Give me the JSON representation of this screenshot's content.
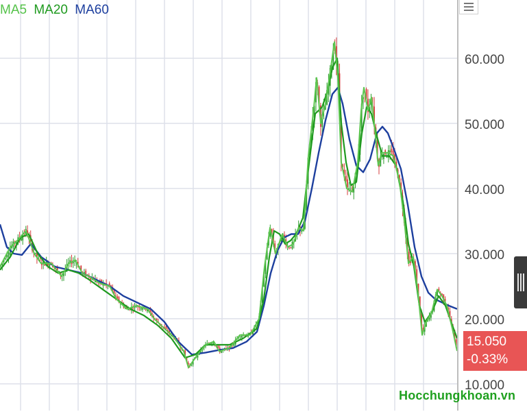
{
  "legend": [
    {
      "label": "MA5",
      "color": "#55c24a"
    },
    {
      "label": "MA20",
      "color": "#1f9a1f"
    },
    {
      "label": "MA60",
      "color": "#1d3f9e"
    }
  ],
  "price_badge": {
    "price": "15.050",
    "change": "-0.33%",
    "color": "#e85555"
  },
  "watermark": "Hocchungkhoan.vn",
  "chart_data": {
    "type": "line",
    "y_ticks": [
      "10.000",
      "20.000",
      "30.000",
      "40.000",
      "50.000",
      "60.000"
    ],
    "ylim": [
      8000,
      68000
    ],
    "grid": true,
    "colors": {
      "price": "#5cc64f",
      "ma20": "#1f9a1f",
      "ma60": "#1d3f9e",
      "up": "#2e9d2e",
      "down": "#d63b3b"
    },
    "price_series": [
      [
        0,
        28000
      ],
      [
        15,
        31000
      ],
      [
        25,
        32000
      ],
      [
        38,
        33500
      ],
      [
        50,
        30000
      ],
      [
        60,
        28500
      ],
      [
        75,
        28500
      ],
      [
        90,
        26500
      ],
      [
        100,
        28500
      ],
      [
        110,
        29000
      ],
      [
        120,
        27000
      ],
      [
        130,
        26500
      ],
      [
        145,
        25500
      ],
      [
        160,
        25000
      ],
      [
        170,
        23000
      ],
      [
        185,
        21500
      ],
      [
        200,
        22000
      ],
      [
        215,
        21500
      ],
      [
        225,
        20000
      ],
      [
        240,
        18500
      ],
      [
        255,
        17000
      ],
      [
        268,
        15000
      ],
      [
        275,
        12500
      ],
      [
        285,
        14000
      ],
      [
        300,
        16000
      ],
      [
        312,
        16500
      ],
      [
        320,
        15000
      ],
      [
        335,
        15500
      ],
      [
        350,
        17500
      ],
      [
        365,
        17500
      ],
      [
        378,
        20000
      ],
      [
        386,
        28000
      ],
      [
        394,
        34000
      ],
      [
        402,
        30000
      ],
      [
        412,
        33000
      ],
      [
        420,
        31000
      ],
      [
        428,
        31500
      ],
      [
        436,
        34000
      ],
      [
        443,
        33500
      ],
      [
        450,
        45000
      ],
      [
        458,
        52500
      ],
      [
        462,
        57000
      ],
      [
        468,
        50000
      ],
      [
        475,
        53000
      ],
      [
        482,
        58000
      ],
      [
        488,
        62500
      ],
      [
        493,
        57000
      ],
      [
        498,
        44000
      ],
      [
        506,
        40000
      ],
      [
        514,
        39500
      ],
      [
        522,
        44000
      ],
      [
        527,
        52000
      ],
      [
        531,
        55500
      ],
      [
        537,
        52000
      ],
      [
        542,
        54000
      ],
      [
        547,
        49000
      ],
      [
        552,
        43500
      ],
      [
        557,
        45500
      ],
      [
        566,
        45500
      ],
      [
        574,
        45000
      ],
      [
        583,
        41000
      ],
      [
        590,
        35000
      ],
      [
        596,
        28500
      ],
      [
        603,
        29500
      ],
      [
        610,
        24000
      ],
      [
        616,
        17500
      ],
      [
        622,
        19500
      ],
      [
        630,
        21000
      ],
      [
        638,
        24500
      ],
      [
        645,
        23500
      ],
      [
        652,
        22000
      ],
      [
        660,
        18500
      ],
      [
        667,
        15050
      ]
    ],
    "ma20_series": [
      [
        0,
        27500
      ],
      [
        15,
        29500
      ],
      [
        30,
        32500
      ],
      [
        42,
        33000
      ],
      [
        55,
        30000
      ],
      [
        70,
        28000
      ],
      [
        85,
        27000
      ],
      [
        100,
        27500
      ],
      [
        115,
        27000
      ],
      [
        130,
        26000
      ],
      [
        150,
        24500
      ],
      [
        170,
        23000
      ],
      [
        190,
        21500
      ],
      [
        210,
        20500
      ],
      [
        230,
        19000
      ],
      [
        250,
        17000
      ],
      [
        270,
        14000
      ],
      [
        285,
        14500
      ],
      [
        300,
        16000
      ],
      [
        318,
        16000
      ],
      [
        335,
        16000
      ],
      [
        355,
        17000
      ],
      [
        375,
        18500
      ],
      [
        385,
        23000
      ],
      [
        393,
        29500
      ],
      [
        400,
        33500
      ],
      [
        408,
        33000
      ],
      [
        416,
        31500
      ],
      [
        424,
        32000
      ],
      [
        432,
        33000
      ],
      [
        442,
        35500
      ],
      [
        450,
        43000
      ],
      [
        460,
        51500
      ],
      [
        470,
        52500
      ],
      [
        478,
        55000
      ],
      [
        485,
        58500
      ],
      [
        492,
        60000
      ],
      [
        498,
        50000
      ],
      [
        505,
        44000
      ],
      [
        512,
        40500
      ],
      [
        520,
        41000
      ],
      [
        528,
        48500
      ],
      [
        535,
        52500
      ],
      [
        542,
        51500
      ],
      [
        550,
        48000
      ],
      [
        558,
        45000
      ],
      [
        568,
        45000
      ],
      [
        578,
        43500
      ],
      [
        588,
        38000
      ],
      [
        596,
        31500
      ],
      [
        604,
        28000
      ],
      [
        612,
        22000
      ],
      [
        620,
        19500
      ],
      [
        630,
        21000
      ],
      [
        640,
        23500
      ],
      [
        650,
        22000
      ],
      [
        660,
        19000
      ],
      [
        667,
        17000
      ]
    ],
    "ma60_series": [
      [
        0,
        34500
      ],
      [
        10,
        31000
      ],
      [
        20,
        30000
      ],
      [
        32,
        29800
      ],
      [
        45,
        31500
      ],
      [
        60,
        29500
      ],
      [
        80,
        28000
      ],
      [
        100,
        27500
      ],
      [
        120,
        27000
      ],
      [
        140,
        26000
      ],
      [
        160,
        25000
      ],
      [
        180,
        23500
      ],
      [
        200,
        22500
      ],
      [
        220,
        21500
      ],
      [
        240,
        19500
      ],
      [
        260,
        16500
      ],
      [
        280,
        14500
      ],
      [
        300,
        14800
      ],
      [
        320,
        15200
      ],
      [
        340,
        15500
      ],
      [
        360,
        16500
      ],
      [
        375,
        18000
      ],
      [
        385,
        22000
      ],
      [
        395,
        27000
      ],
      [
        405,
        30500
      ],
      [
        415,
        32500
      ],
      [
        425,
        33000
      ],
      [
        435,
        33000
      ],
      [
        445,
        35000
      ],
      [
        455,
        40000
      ],
      [
        465,
        45500
      ],
      [
        475,
        50500
      ],
      [
        485,
        54500
      ],
      [
        493,
        55500
      ],
      [
        500,
        53000
      ],
      [
        510,
        47500
      ],
      [
        520,
        43500
      ],
      [
        530,
        42500
      ],
      [
        540,
        44500
      ],
      [
        550,
        48500
      ],
      [
        558,
        49500
      ],
      [
        566,
        48500
      ],
      [
        575,
        46000
      ],
      [
        585,
        43000
      ],
      [
        595,
        37500
      ],
      [
        605,
        31000
      ],
      [
        615,
        26500
      ],
      [
        625,
        24000
      ],
      [
        635,
        23000
      ],
      [
        645,
        22500
      ],
      [
        655,
        22000
      ],
      [
        667,
        21500
      ]
    ]
  }
}
